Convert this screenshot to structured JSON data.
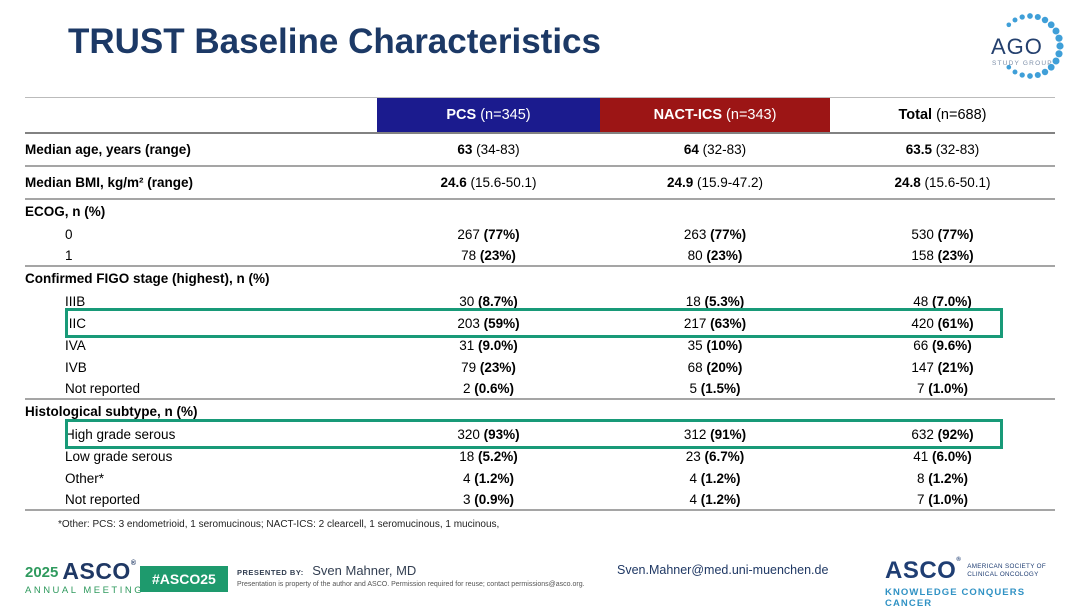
{
  "slide": {
    "title": "TRUST Baseline Characteristics"
  },
  "logos": {
    "ago": {
      "name": "AGO",
      "subtitle": "STUDY GROUP",
      "dot_color": "#3f9fd8",
      "text_color": "#24406e"
    },
    "asco_meeting": {
      "year": "2025",
      "org": "ASCO",
      "reg": "®",
      "line2": "ANNUAL MEETING"
    },
    "hashtag": "#ASCO25",
    "asco_right": {
      "org": "ASCO",
      "reg": "®",
      "line1": "AMERICAN SOCIETY OF",
      "line2": "CLINICAL ONCOLOGY",
      "tagline": "KNOWLEDGE CONQUERS CANCER"
    }
  },
  "footer": {
    "presented_by_label": "PRESENTED BY:",
    "presenter": "Sven Mahner, MD",
    "fine_print": "Presentation is property of the author and ASCO. Permission required for reuse; contact permissions@asco.org.",
    "email": "Sven.Mahner@med.uni-muenchen.de"
  },
  "colors": {
    "title_navy": "#1c3966",
    "pcs_header_bg": "#1b1b8e",
    "nact_header_bg": "#9c1515",
    "highlight_green": "#189a78",
    "asco_green": "#1e9a6d",
    "asco_navy": "#1f3864",
    "tagline_blue": "#3092c4"
  },
  "table": {
    "header": [
      {
        "name": "PCS",
        "n": "(n=345)"
      },
      {
        "name": "NACT-ICS",
        "n": "(n=343)"
      },
      {
        "name": "Total",
        "n": "(n=688)"
      }
    ],
    "rows": [
      {
        "type": "data",
        "label": "Median age, years (range)",
        "bold_label": true,
        "median": true,
        "sep_after": true,
        "cells": [
          [
            "63",
            " (34-83)"
          ],
          [
            "64",
            " (32-83)"
          ],
          [
            "63.5",
            " (32-83)"
          ]
        ]
      },
      {
        "type": "data",
        "label": "Median BMI, kg/m² (range)",
        "bold_label": true,
        "median": true,
        "sep_after": true,
        "cells": [
          [
            "24.6",
            " (15.6-50.1)"
          ],
          [
            "24.9",
            " (15.9-47.2)"
          ],
          [
            "24.8",
            " (15.6-50.1)"
          ]
        ]
      },
      {
        "type": "group",
        "label": "ECOG, n (%)"
      },
      {
        "type": "data",
        "label": "0",
        "indent": true,
        "cells": [
          [
            "267 ",
            "(77%)"
          ],
          [
            "263 ",
            "(77%)"
          ],
          [
            "530 ",
            "(77%)"
          ]
        ]
      },
      {
        "type": "data",
        "label": "1",
        "indent": true,
        "sep_after": true,
        "cells": [
          [
            "78 ",
            "(23%)"
          ],
          [
            "80 ",
            "(23%)"
          ],
          [
            "158 ",
            "(23%)"
          ]
        ]
      },
      {
        "type": "group",
        "label": "Confirmed FIGO stage (highest), n (%)"
      },
      {
        "type": "data",
        "label": "IIIB",
        "indent": true,
        "cells": [
          [
            "30 ",
            "(8.7%)"
          ],
          [
            "18 ",
            "(5.3%)"
          ],
          [
            "48 ",
            "(7.0%)"
          ]
        ]
      },
      {
        "type": "data",
        "label": "IIIC",
        "indent": true,
        "highlight": true,
        "cells": [
          [
            "203 ",
            "(59%)"
          ],
          [
            "217 ",
            "(63%)"
          ],
          [
            "420 ",
            "(61%)"
          ]
        ]
      },
      {
        "type": "data",
        "label": "IVA",
        "indent": true,
        "cells": [
          [
            "31 ",
            "(9.0%)"
          ],
          [
            "35 ",
            "(10%)"
          ],
          [
            "66 ",
            "(9.6%)"
          ]
        ]
      },
      {
        "type": "data",
        "label": "IVB",
        "indent": true,
        "cells": [
          [
            "79 ",
            "(23%)"
          ],
          [
            "68 ",
            "(20%)"
          ],
          [
            "147 ",
            "(21%)"
          ]
        ]
      },
      {
        "type": "data",
        "label": "Not reported",
        "indent": true,
        "sep_after": true,
        "cells": [
          [
            "2 ",
            "(0.6%)"
          ],
          [
            "5 ",
            "(1.5%)"
          ],
          [
            "7 ",
            "(1.0%)"
          ]
        ]
      },
      {
        "type": "group",
        "label": "Histological subtype, n (%)"
      },
      {
        "type": "data",
        "label": "High grade serous",
        "indent": true,
        "highlight": true,
        "cells": [
          [
            "320 ",
            "(93%)"
          ],
          [
            "312 ",
            "(91%)"
          ],
          [
            "632 ",
            "(92%)"
          ]
        ]
      },
      {
        "type": "data",
        "label": "Low grade serous",
        "indent": true,
        "cells": [
          [
            "18 ",
            "(5.2%)"
          ],
          [
            "23 ",
            "(6.7%)"
          ],
          [
            "41 ",
            "(6.0%)"
          ]
        ]
      },
      {
        "type": "data",
        "label": "Other*",
        "indent": true,
        "cells": [
          [
            "4 ",
            "(1.2%)"
          ],
          [
            "4 ",
            "(1.2%)"
          ],
          [
            "8 ",
            "(1.2%)"
          ]
        ]
      },
      {
        "type": "data",
        "label": "Not reported",
        "indent": true,
        "sep_after": true,
        "cells": [
          [
            "3 ",
            "(0.9%)"
          ],
          [
            "4 ",
            "(1.2%)"
          ],
          [
            "7 ",
            "(1.0%)"
          ]
        ]
      }
    ],
    "footnote": "*Other: PCS: 3 endometrioid, 1 seromucinous; NACT-ICS: 2 clearcell, 1 seromucinous, 1 mucinous,"
  }
}
